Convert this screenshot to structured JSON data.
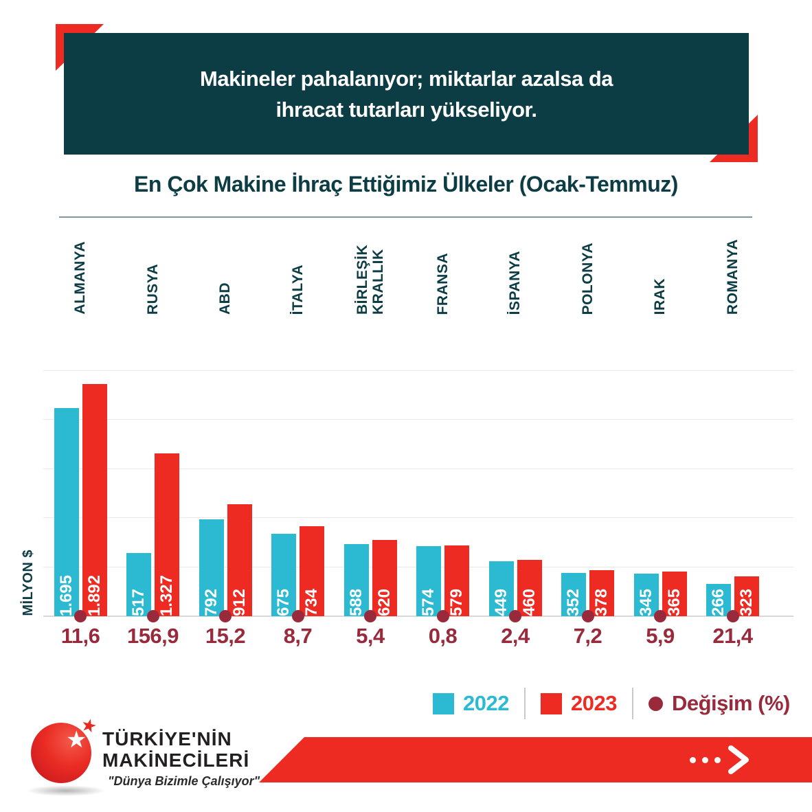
{
  "header": {
    "line1": "Makineler pahalanıyor; miktarlar azalsa da",
    "line2": "ihracat tutarları yükseliyor."
  },
  "subtitle": "En Çok Makine İhraç Ettiğimiz Ülkeler (Ocak-Temmuz)",
  "axis_label": "MİLYON $",
  "legend": {
    "label_2022": "2022",
    "label_2023": "2023",
    "label_change": "Değişim (%)"
  },
  "icons": {
    "change_marker": "filled-circle",
    "forward_arrow": "three-dots-chevron-right",
    "logo_star_white": "★",
    "logo_star_red": "★"
  },
  "colors": {
    "header_bg": "#0c3c44",
    "series_2022": "#2cbad3",
    "series_2023": "#ee2b23",
    "change": "#992a3b",
    "accent_red": "#ee2b23",
    "gridline": "#e9e9e9",
    "rule": "#7d98a4"
  },
  "footer": {
    "brand_line1": "TÜRKİYE'NİN",
    "brand_line2": "MAKİNECİLERİ",
    "slogan": "\"Dünya Bizimle Çalışıyor\""
  },
  "chart_data": {
    "type": "bar",
    "title": "En Çok Makine İhraç Ettiğimiz Ülkeler (Ocak-Temmuz)",
    "ylabel": "MİLYON $",
    "ylim": [
      0,
      2000
    ],
    "gridline_step": 400,
    "grid": true,
    "legend_position": "bottom-right",
    "categories": [
      "ALMANYA",
      "RUSYA",
      "ABD",
      "İTALYA",
      "BİRLEŞİK\nKRALLIK",
      "FRANSA",
      "İSPANYA",
      "POLONYA",
      "IRAK",
      "ROMANYA"
    ],
    "series": [
      {
        "name": "2022",
        "values": [
          1695,
          517,
          792,
          675,
          588,
          574,
          449,
          352,
          345,
          266
        ],
        "labels": [
          "1.695",
          "517",
          "792",
          "675",
          "588",
          "574",
          "449",
          "352",
          "345",
          "266"
        ]
      },
      {
        "name": "2023",
        "values": [
          1892,
          1327,
          912,
          734,
          620,
          579,
          460,
          378,
          365,
          323
        ],
        "labels": [
          "1.892",
          "1.327",
          "912",
          "734",
          "620",
          "579",
          "460",
          "378",
          "365",
          "323"
        ]
      }
    ],
    "change_percent": [
      "11,6",
      "156,9",
      "15,2",
      "8,7",
      "5,4",
      "0,8",
      "2,4",
      "7,2",
      "5,9",
      "21,4"
    ]
  }
}
